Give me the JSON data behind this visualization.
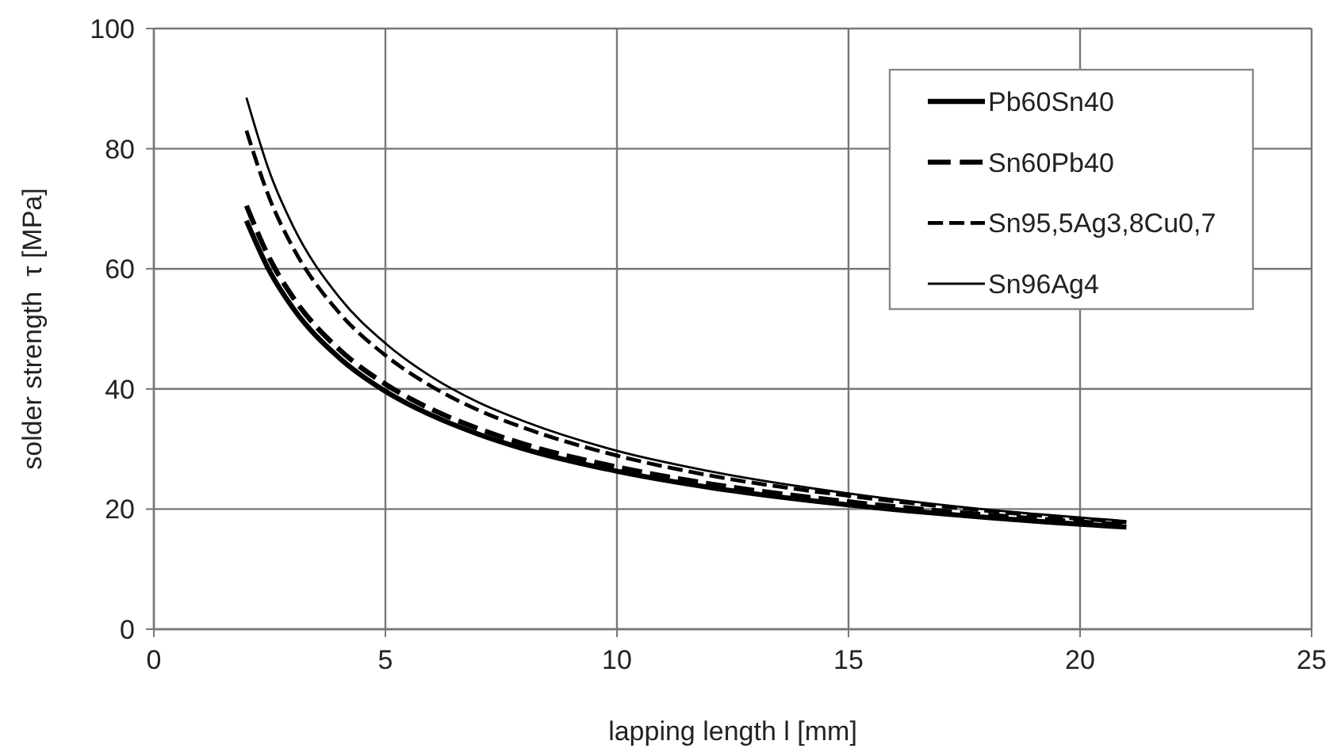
{
  "chart_data": {
    "type": "line",
    "xlabel": "lapping length l [mm]",
    "ylabel": "solder strength  τ [MPa]",
    "x": [
      2,
      2.5,
      3,
      4,
      5,
      6,
      7,
      8,
      10,
      12,
      15,
      18,
      21
    ],
    "series": [
      {
        "name": "Pb60Sn40",
        "color": "#000000",
        "line_style": "solid",
        "values": [
          68,
          59.6,
          53.5,
          45.2,
          39.6,
          35.6,
          32.5,
          30.0,
          26.3,
          23.6,
          20.7,
          18.6,
          17.0
        ]
      },
      {
        "name": "Sn60Pb40",
        "color": "#000000",
        "line_style": "dashed",
        "values": [
          70.5,
          61.7,
          55.3,
          46.6,
          40.8,
          36.6,
          33.4,
          30.8,
          27.0,
          24.2,
          21.2,
          19.0,
          17.3
        ]
      },
      {
        "name": "Sn95,5Ag3,8Cu0,7",
        "color": "#000000",
        "line_style": "dashed",
        "values": [
          83,
          71.7,
          63.6,
          52.7,
          45.6,
          40.4,
          36.5,
          33.5,
          28.9,
          25.6,
          22.2,
          19.7,
          17.8
        ]
      },
      {
        "name": "Sn96Ag4",
        "color": "#000000",
        "line_style": "solid",
        "values": [
          88.5,
          76.1,
          67.2,
          55.3,
          47.6,
          42.0,
          37.8,
          34.6,
          29.7,
          26.3,
          22.6,
          19.9,
          18.0
        ]
      }
    ],
    "xlim": [
      0,
      25
    ],
    "xticks": [
      0,
      5,
      10,
      15,
      20,
      25
    ],
    "ylim": [
      0,
      100
    ],
    "yticks": [
      0,
      20,
      40,
      60,
      80,
      100
    ],
    "grid": true,
    "legend": "top right",
    "marker": "none"
  }
}
